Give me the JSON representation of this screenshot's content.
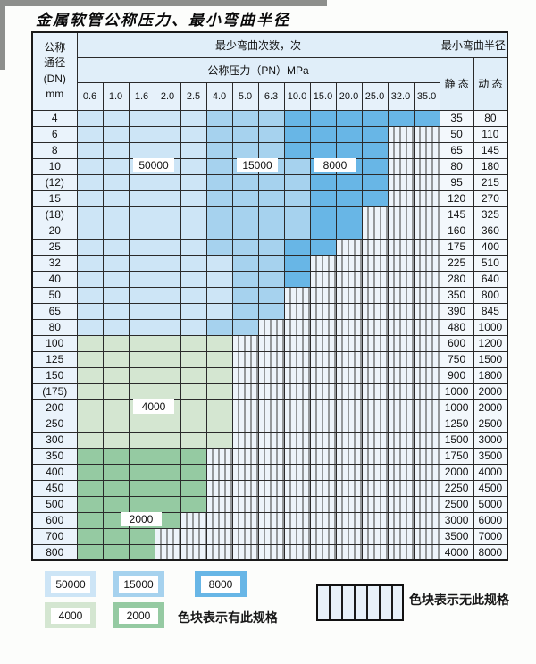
{
  "page": {
    "title": "金属软管公称压力、最小弯曲半径"
  },
  "table_headers": {
    "corner": "公称\n通径\n(DN)\nmm",
    "cycles": "最少弯曲次数，次",
    "pressure": "公称压力（PN）MPa",
    "radius": "最小弯曲半径",
    "static": "静 态",
    "dynamic": "动 态"
  },
  "chart_data": {
    "type": "table",
    "title": "金属软管公称压力、最小弯曲半径",
    "columns": [
      "0.6",
      "1.0",
      "1.6",
      "2.0",
      "2.5",
      "4.0",
      "5.0",
      "6.3",
      "10.0",
      "15.0",
      "20.0",
      "25.0",
      "32.0",
      "35.0"
    ],
    "column_unit": "MPa",
    "row_unit": "DN mm",
    "cell_meaning": "minimum bending cycles by color zone; hatched = no specification",
    "colors": {
      "50000": "#cde5f6",
      "15000": "#a6d2ee",
      "8000": "#68b6e6",
      "4000": "#d4e6d1",
      "2000": "#95caa2"
    },
    "rows": [
      {
        "dn": "4",
        "static": "35",
        "dynamic": "80",
        "zones": [
          {
            "value": "50000",
            "from": 0,
            "to": 4
          },
          {
            "value": "15000",
            "from": 5,
            "to": 7
          },
          {
            "value": "8000",
            "from": 8,
            "to": 13
          }
        ]
      },
      {
        "dn": "6",
        "static": "50",
        "dynamic": "110",
        "zones": [
          {
            "value": "50000",
            "from": 0,
            "to": 4
          },
          {
            "value": "15000",
            "from": 5,
            "to": 7
          },
          {
            "value": "8000",
            "from": 8,
            "to": 11
          }
        ]
      },
      {
        "dn": "8",
        "static": "65",
        "dynamic": "145",
        "zones": [
          {
            "value": "50000",
            "from": 0,
            "to": 4
          },
          {
            "value": "15000",
            "from": 5,
            "to": 7
          },
          {
            "value": "8000",
            "from": 8,
            "to": 11
          }
        ]
      },
      {
        "dn": "10",
        "static": "80",
        "dynamic": "180",
        "zones": [
          {
            "value": "50000",
            "from": 0,
            "to": 4
          },
          {
            "value": "15000",
            "from": 5,
            "to": 8
          },
          {
            "value": "8000",
            "from": 9,
            "to": 11
          }
        ]
      },
      {
        "dn": "(12)",
        "static": "95",
        "dynamic": "215",
        "zones": [
          {
            "value": "50000",
            "from": 0,
            "to": 4
          },
          {
            "value": "15000",
            "from": 5,
            "to": 8
          },
          {
            "value": "8000",
            "from": 9,
            "to": 11
          }
        ]
      },
      {
        "dn": "15",
        "static": "120",
        "dynamic": "270",
        "zones": [
          {
            "value": "50000",
            "from": 0,
            "to": 4
          },
          {
            "value": "15000",
            "from": 5,
            "to": 8
          },
          {
            "value": "8000",
            "from": 9,
            "to": 11
          }
        ]
      },
      {
        "dn": "(18)",
        "static": "145",
        "dynamic": "325",
        "zones": [
          {
            "value": "50000",
            "from": 0,
            "to": 4
          },
          {
            "value": "15000",
            "from": 5,
            "to": 8
          },
          {
            "value": "8000",
            "from": 9,
            "to": 10
          }
        ]
      },
      {
        "dn": "20",
        "static": "160",
        "dynamic": "360",
        "zones": [
          {
            "value": "50000",
            "from": 0,
            "to": 4
          },
          {
            "value": "15000",
            "from": 5,
            "to": 8
          },
          {
            "value": "8000",
            "from": 9,
            "to": 10
          }
        ]
      },
      {
        "dn": "25",
        "static": "175",
        "dynamic": "400",
        "zones": [
          {
            "value": "50000",
            "from": 0,
            "to": 4
          },
          {
            "value": "15000",
            "from": 5,
            "to": 7
          },
          {
            "value": "8000",
            "from": 8,
            "to": 9
          }
        ]
      },
      {
        "dn": "32",
        "static": "225",
        "dynamic": "510",
        "zones": [
          {
            "value": "50000",
            "from": 0,
            "to": 5
          },
          {
            "value": "15000",
            "from": 6,
            "to": 7
          },
          {
            "value": "8000",
            "from": 8,
            "to": 8
          }
        ]
      },
      {
        "dn": "40",
        "static": "280",
        "dynamic": "640",
        "zones": [
          {
            "value": "50000",
            "from": 0,
            "to": 5
          },
          {
            "value": "15000",
            "from": 6,
            "to": 7
          },
          {
            "value": "8000",
            "from": 8,
            "to": 8
          }
        ]
      },
      {
        "dn": "50",
        "static": "350",
        "dynamic": "800",
        "zones": [
          {
            "value": "50000",
            "from": 0,
            "to": 5
          },
          {
            "value": "15000",
            "from": 6,
            "to": 7
          }
        ]
      },
      {
        "dn": "65",
        "static": "390",
        "dynamic": "845",
        "zones": [
          {
            "value": "50000",
            "from": 0,
            "to": 5
          },
          {
            "value": "15000",
            "from": 6,
            "to": 7
          }
        ]
      },
      {
        "dn": "80",
        "static": "480",
        "dynamic": "1000",
        "zones": [
          {
            "value": "50000",
            "from": 0,
            "to": 4
          },
          {
            "value": "15000",
            "from": 5,
            "to": 6
          }
        ]
      },
      {
        "dn": "100",
        "static": "600",
        "dynamic": "1200",
        "zones": [
          {
            "value": "4000",
            "from": 0,
            "to": 5
          }
        ]
      },
      {
        "dn": "125",
        "static": "750",
        "dynamic": "1500",
        "zones": [
          {
            "value": "4000",
            "from": 0,
            "to": 5
          }
        ]
      },
      {
        "dn": "150",
        "static": "900",
        "dynamic": "1800",
        "zones": [
          {
            "value": "4000",
            "from": 0,
            "to": 5
          }
        ]
      },
      {
        "dn": "(175)",
        "static": "1000",
        "dynamic": "2000",
        "zones": [
          {
            "value": "4000",
            "from": 0,
            "to": 5
          }
        ]
      },
      {
        "dn": "200",
        "static": "1000",
        "dynamic": "2000",
        "zones": [
          {
            "value": "4000",
            "from": 0,
            "to": 5
          }
        ]
      },
      {
        "dn": "250",
        "static": "1250",
        "dynamic": "2500",
        "zones": [
          {
            "value": "4000",
            "from": 0,
            "to": 5
          }
        ]
      },
      {
        "dn": "300",
        "static": "1500",
        "dynamic": "3000",
        "zones": [
          {
            "value": "4000",
            "from": 0,
            "to": 5
          }
        ]
      },
      {
        "dn": "350",
        "static": "1750",
        "dynamic": "3500",
        "zones": [
          {
            "value": "2000",
            "from": 0,
            "to": 4
          }
        ]
      },
      {
        "dn": "400",
        "static": "2000",
        "dynamic": "4000",
        "zones": [
          {
            "value": "2000",
            "from": 0,
            "to": 4
          }
        ]
      },
      {
        "dn": "450",
        "static": "2250",
        "dynamic": "4500",
        "zones": [
          {
            "value": "2000",
            "from": 0,
            "to": 4
          }
        ]
      },
      {
        "dn": "500",
        "static": "2500",
        "dynamic": "5000",
        "zones": [
          {
            "value": "2000",
            "from": 0,
            "to": 4
          }
        ]
      },
      {
        "dn": "600",
        "static": "3000",
        "dynamic": "6000",
        "zones": [
          {
            "value": "2000",
            "from": 0,
            "to": 3
          }
        ]
      },
      {
        "dn": "700",
        "static": "3500",
        "dynamic": "7000",
        "zones": [
          {
            "value": "2000",
            "from": 0,
            "to": 2
          }
        ]
      },
      {
        "dn": "800",
        "static": "4000",
        "dynamic": "8000",
        "zones": [
          {
            "value": "2000",
            "from": 0,
            "to": 2
          }
        ]
      }
    ],
    "labels": [
      {
        "text": "50000",
        "dn": "10",
        "col_from": 2,
        "col_to": 3
      },
      {
        "text": "15000",
        "dn": "10",
        "col_from": 6,
        "col_to": 7
      },
      {
        "text": "8000",
        "dn": "10",
        "col_from": 9,
        "col_to": 10
      },
      {
        "text": "4000",
        "dn": "200",
        "col_from": 2,
        "col_to": 3
      },
      {
        "text": "2000",
        "dn": "600",
        "col_from": 2,
        "col_to": 2
      }
    ],
    "legend": {
      "items": [
        {
          "value": "50000"
        },
        {
          "value": "15000"
        },
        {
          "value": "8000"
        },
        {
          "value": "4000"
        },
        {
          "value": "2000"
        }
      ],
      "has_note": "色块表示有此规格",
      "no_note": "色块表示无此规格"
    }
  }
}
